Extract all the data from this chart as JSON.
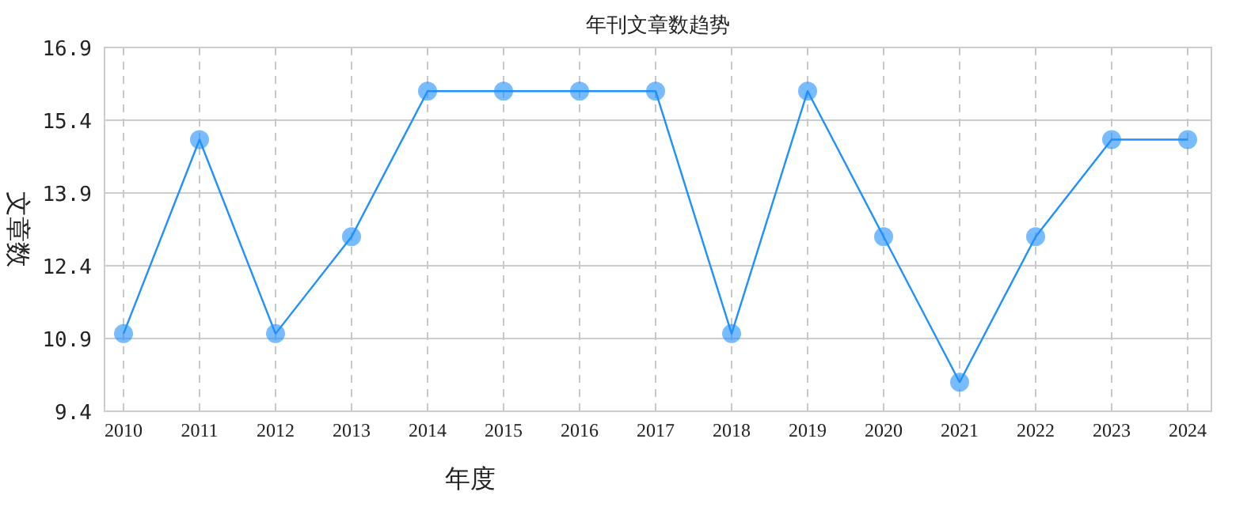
{
  "chart_data": {
    "type": "line",
    "title": "年刊文章数趋势",
    "xlabel": "年度",
    "ylabel": "文章数",
    "categories": [
      "2010",
      "2011",
      "2012",
      "2013",
      "2014",
      "2015",
      "2016",
      "2017",
      "2018",
      "2019",
      "2020",
      "2021",
      "2022",
      "2023",
      "2024"
    ],
    "series": [
      {
        "color": "#1e90ff",
        "values": [
          11,
          15,
          11,
          13,
          16,
          16,
          16,
          16,
          11,
          16,
          13,
          10,
          13,
          15,
          15
        ]
      }
    ],
    "ylim": [
      9.4,
      16.9
    ],
    "yticks": [
      9.4,
      10.9,
      12.4,
      13.9,
      15.4,
      16.9
    ],
    "grid": true,
    "marker": "circle",
    "line_style": "solid"
  }
}
